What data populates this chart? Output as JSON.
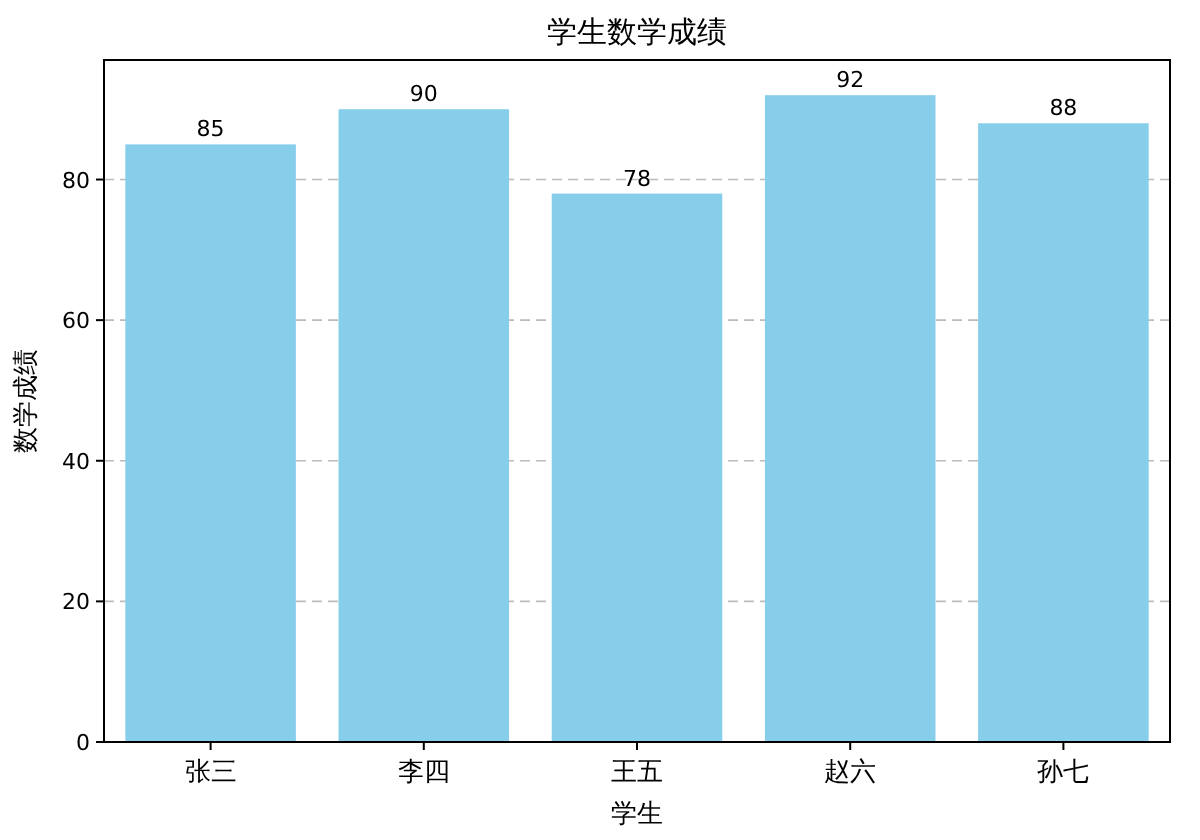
{
  "chart_data": {
    "type": "bar",
    "title": "学生数学成绩",
    "xlabel": "学生",
    "ylabel": "数学成绩",
    "categories": [
      "张三",
      "李四",
      "王五",
      "赵六",
      "孙七"
    ],
    "values": [
      85,
      90,
      78,
      92,
      88
    ],
    "color": "#87ceeb",
    "ylim": [
      0,
      97
    ],
    "yticks": [
      0,
      20,
      40,
      60,
      80
    ],
    "grid": "y",
    "line_style": "dashed",
    "data_labels": true
  }
}
